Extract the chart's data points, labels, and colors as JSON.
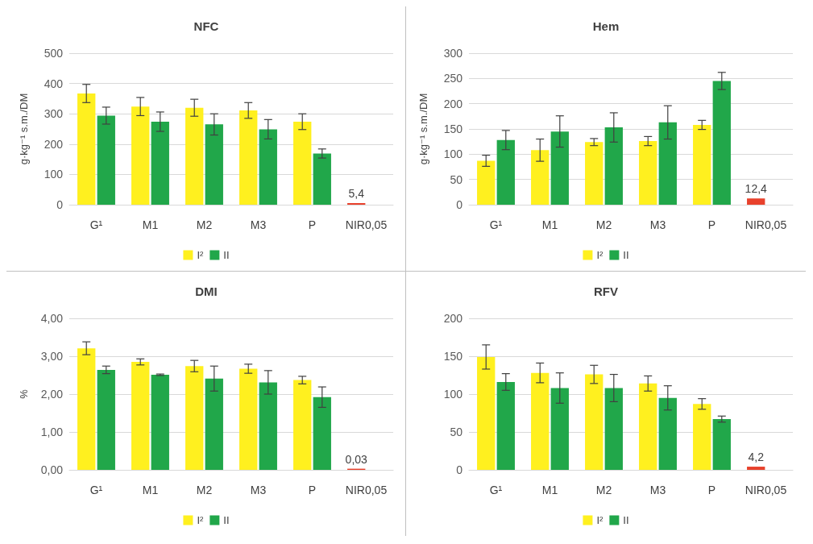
{
  "chart_data": [
    {
      "type": "bar",
      "title": "NFC",
      "ylabel": "g·kg⁻¹ s.m./DM",
      "categories": [
        "G¹",
        "M1",
        "M2",
        "M3",
        "P",
        "NIR0,05"
      ],
      "ylim": [
        0,
        500
      ],
      "yticks": [
        0,
        100,
        200,
        300,
        400,
        500
      ],
      "grid": "y",
      "legend": "bottom",
      "series": [
        {
          "name": "I²",
          "color": "#fff01f",
          "colors": [
            "#fff01f",
            "#fff01f",
            "#fff01f",
            "#fff01f",
            "#fff01f",
            "#e8412c"
          ],
          "values": [
            367,
            324,
            320,
            311,
            274,
            5.4
          ],
          "errors": [
            30,
            30,
            28,
            26,
            26,
            null
          ],
          "value_labels": [
            null,
            null,
            null,
            null,
            null,
            "5,4"
          ]
        },
        {
          "name": "II",
          "color": "#21a74a",
          "values": [
            294,
            274,
            265,
            249,
            169,
            null
          ],
          "errors": [
            28,
            32,
            35,
            32,
            15,
            null
          ]
        }
      ]
    },
    {
      "type": "bar",
      "title": "Hem",
      "ylabel": "g·kg⁻¹ s.m./DM",
      "categories": [
        "G¹",
        "M1",
        "M2",
        "M3",
        "P",
        "NIR0,05"
      ],
      "ylim": [
        0,
        300
      ],
      "yticks": [
        0,
        50,
        100,
        150,
        200,
        250,
        300
      ],
      "grid": "y",
      "legend": "bottom",
      "series": [
        {
          "name": "I²",
          "color": "#fff01f",
          "colors": [
            "#fff01f",
            "#fff01f",
            "#fff01f",
            "#fff01f",
            "#fff01f",
            "#e8412c"
          ],
          "values": [
            87,
            108,
            124,
            126,
            158,
            12.4
          ],
          "errors": [
            11,
            22,
            7,
            9,
            9,
            null
          ],
          "value_labels": [
            null,
            null,
            null,
            null,
            null,
            "12,4"
          ]
        },
        {
          "name": "II",
          "color": "#21a74a",
          "values": [
            128,
            145,
            153,
            163,
            245,
            null
          ],
          "errors": [
            19,
            31,
            29,
            33,
            17,
            null
          ]
        }
      ]
    },
    {
      "type": "bar",
      "title": "DMI",
      "ylabel": "%",
      "categories": [
        "G¹",
        "M1",
        "M2",
        "M3",
        "P",
        "NIR0,05"
      ],
      "ylim": [
        0,
        4
      ],
      "yticks": [
        {
          "value": 0,
          "label": "0,00"
        },
        {
          "value": 1,
          "label": "1,00"
        },
        {
          "value": 2,
          "label": "2,00"
        },
        {
          "value": 3,
          "label": "3,00"
        },
        {
          "value": 4,
          "label": "4,00"
        }
      ],
      "grid": "y",
      "legend": "bottom",
      "series": [
        {
          "name": "I²",
          "color": "#fff01f",
          "colors": [
            "#fff01f",
            "#fff01f",
            "#fff01f",
            "#fff01f",
            "#fff01f",
            "#e8412c"
          ],
          "values": [
            3.21,
            2.85,
            2.74,
            2.67,
            2.37,
            0.03
          ],
          "errors": [
            0.17,
            0.08,
            0.15,
            0.12,
            0.1,
            null
          ],
          "value_labels": [
            null,
            null,
            null,
            null,
            null,
            "0,03"
          ]
        },
        {
          "name": "II",
          "color": "#21a74a",
          "values": [
            2.64,
            2.51,
            2.41,
            2.31,
            1.92,
            null
          ],
          "errors": [
            0.1,
            0.02,
            0.33,
            0.31,
            0.27,
            null
          ]
        }
      ]
    },
    {
      "type": "bar",
      "title": "RFV",
      "categories": [
        "G¹",
        "M1",
        "M2",
        "M3",
        "P",
        "NIR0,05"
      ],
      "ylim": [
        0,
        200
      ],
      "yticks": [
        0,
        50,
        100,
        150,
        200
      ],
      "grid": "y",
      "legend": "bottom",
      "series": [
        {
          "name": "I²",
          "color": "#fff01f",
          "colors": [
            "#fff01f",
            "#fff01f",
            "#fff01f",
            "#fff01f",
            "#fff01f",
            "#e8412c"
          ],
          "values": [
            149,
            128,
            126,
            114,
            87,
            4.2
          ],
          "errors": [
            16,
            13,
            12,
            10,
            7,
            null
          ],
          "value_labels": [
            null,
            null,
            null,
            null,
            null,
            "4,2"
          ]
        },
        {
          "name": "II",
          "color": "#21a74a",
          "values": [
            116,
            108,
            108,
            95,
            67,
            null
          ],
          "errors": [
            11,
            20,
            18,
            16,
            4,
            null
          ]
        }
      ]
    }
  ]
}
